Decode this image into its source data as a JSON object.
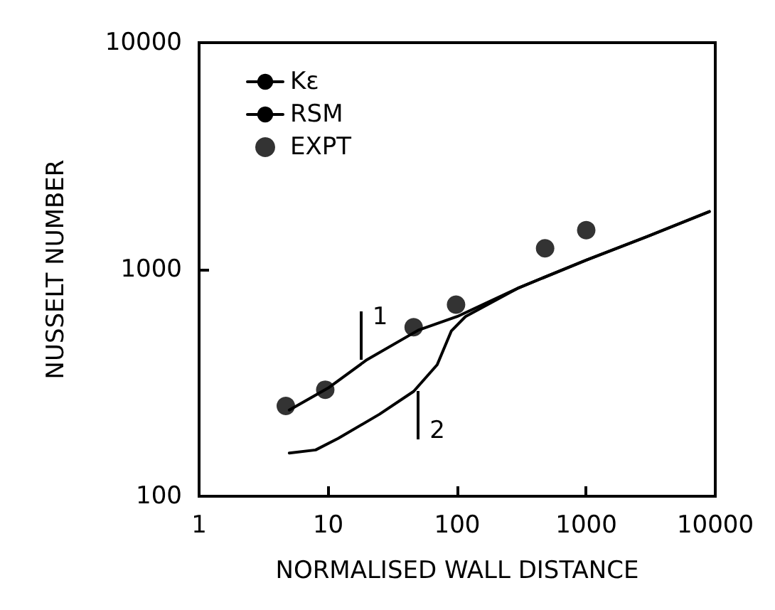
{
  "chart_data": {
    "type": "line",
    "xlabel": "NORMALISED WALL DISTANCE",
    "ylabel": "NUSSELT NUMBER",
    "log": "xy",
    "xlim": [
      1,
      10000
    ],
    "ylim": [
      100,
      10000
    ],
    "xticks": [
      1,
      10,
      100,
      1000,
      10000
    ],
    "yticks": [
      100,
      1000,
      10000
    ],
    "grid": false,
    "legend": "top left",
    "series": [
      {
        "name": "Kε",
        "color": "#000000",
        "marker": "none",
        "x": [
          5,
          10,
          20,
          50,
          100,
          300,
          1000,
          3000,
          9000
        ],
        "values": [
          240,
          300,
          400,
          540,
          620,
          830,
          1100,
          1400,
          1800
        ]
      },
      {
        "name": "RSM",
        "color": "#000000",
        "marker": "none",
        "x": [
          5,
          8,
          12,
          25,
          46,
          70,
          90,
          116,
          300,
          1000,
          3000,
          9000
        ],
        "values": [
          155,
          160,
          180,
          230,
          290,
          380,
          535,
          620,
          830,
          1100,
          1400,
          1800
        ]
      },
      {
        "name": "EXPT",
        "type": "scatter",
        "color": "#000000",
        "marker": "circle",
        "x": [
          4.7,
          9.5,
          46,
          98,
          480,
          1000
        ],
        "values": [
          250,
          295,
          556,
          700,
          1240,
          1490
        ]
      }
    ],
    "annotations": [
      {
        "text": "1",
        "x": 18,
        "y": 400
      },
      {
        "text": "2",
        "x": 50,
        "y": 290
      }
    ]
  }
}
